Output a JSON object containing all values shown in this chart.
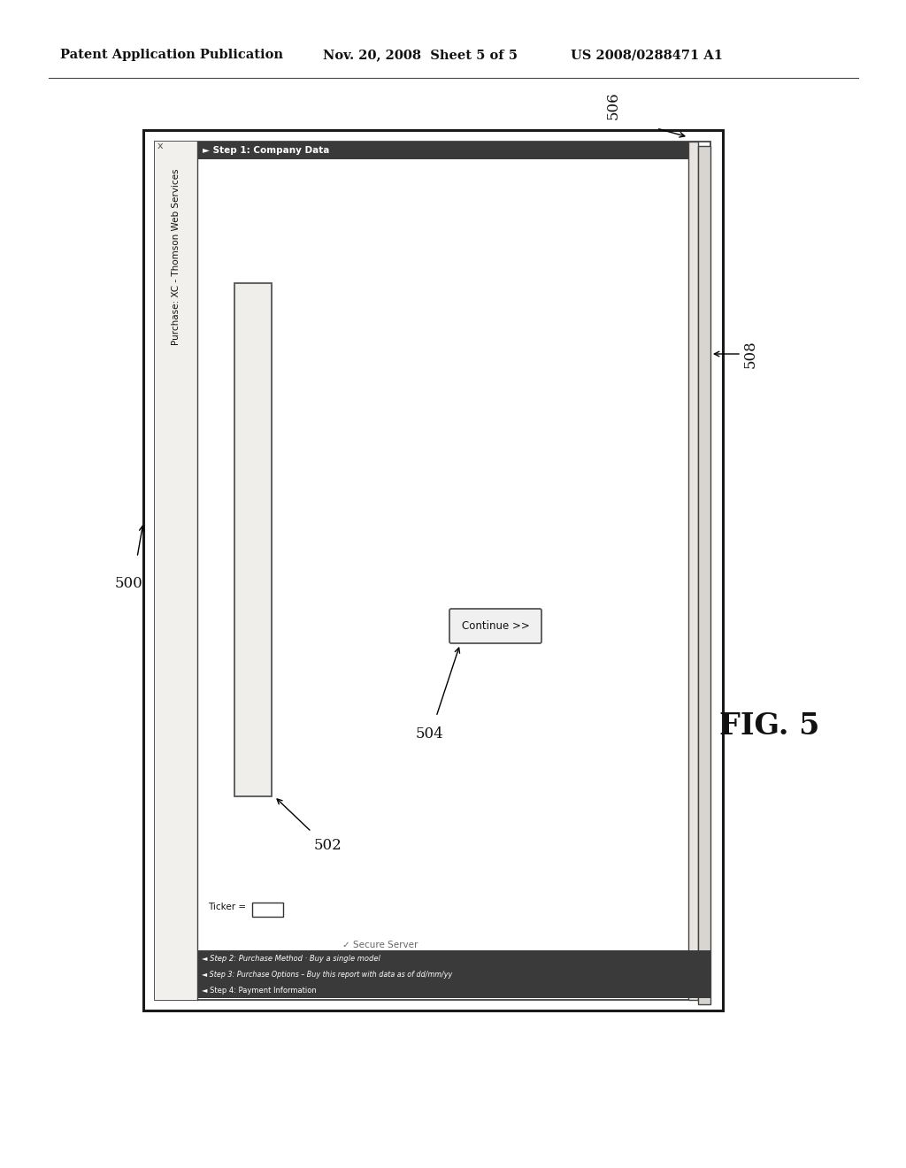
{
  "bg_color": "#ffffff",
  "header_text_left": "Patent Application Publication",
  "header_text_mid": "Nov. 20, 2008  Sheet 5 of 5",
  "header_text_right": "US 2008/0288471 A1",
  "fig_label": "FIG. 5",
  "label_500": "500",
  "label_502": "502",
  "label_504": "504",
  "label_506": "506",
  "label_508": "508",
  "title_bar_text": "Purchase: XC - Thomson Web Services",
  "step1_text": "► Step 1: Company Data",
  "ticker_text": "Ticker =",
  "secure_server_text": "✓ Secure Server",
  "continue_btn_text": "Continue >>",
  "step2_text": "◄ Step 2: Purchase Method · Buy a single model",
  "step3_text": "◄ Step 3: Purchase Options – Buy this report with data as of dd/mm/yy",
  "step4_text": "◄ Step 4: Payment Information",
  "x_symbol": "x"
}
